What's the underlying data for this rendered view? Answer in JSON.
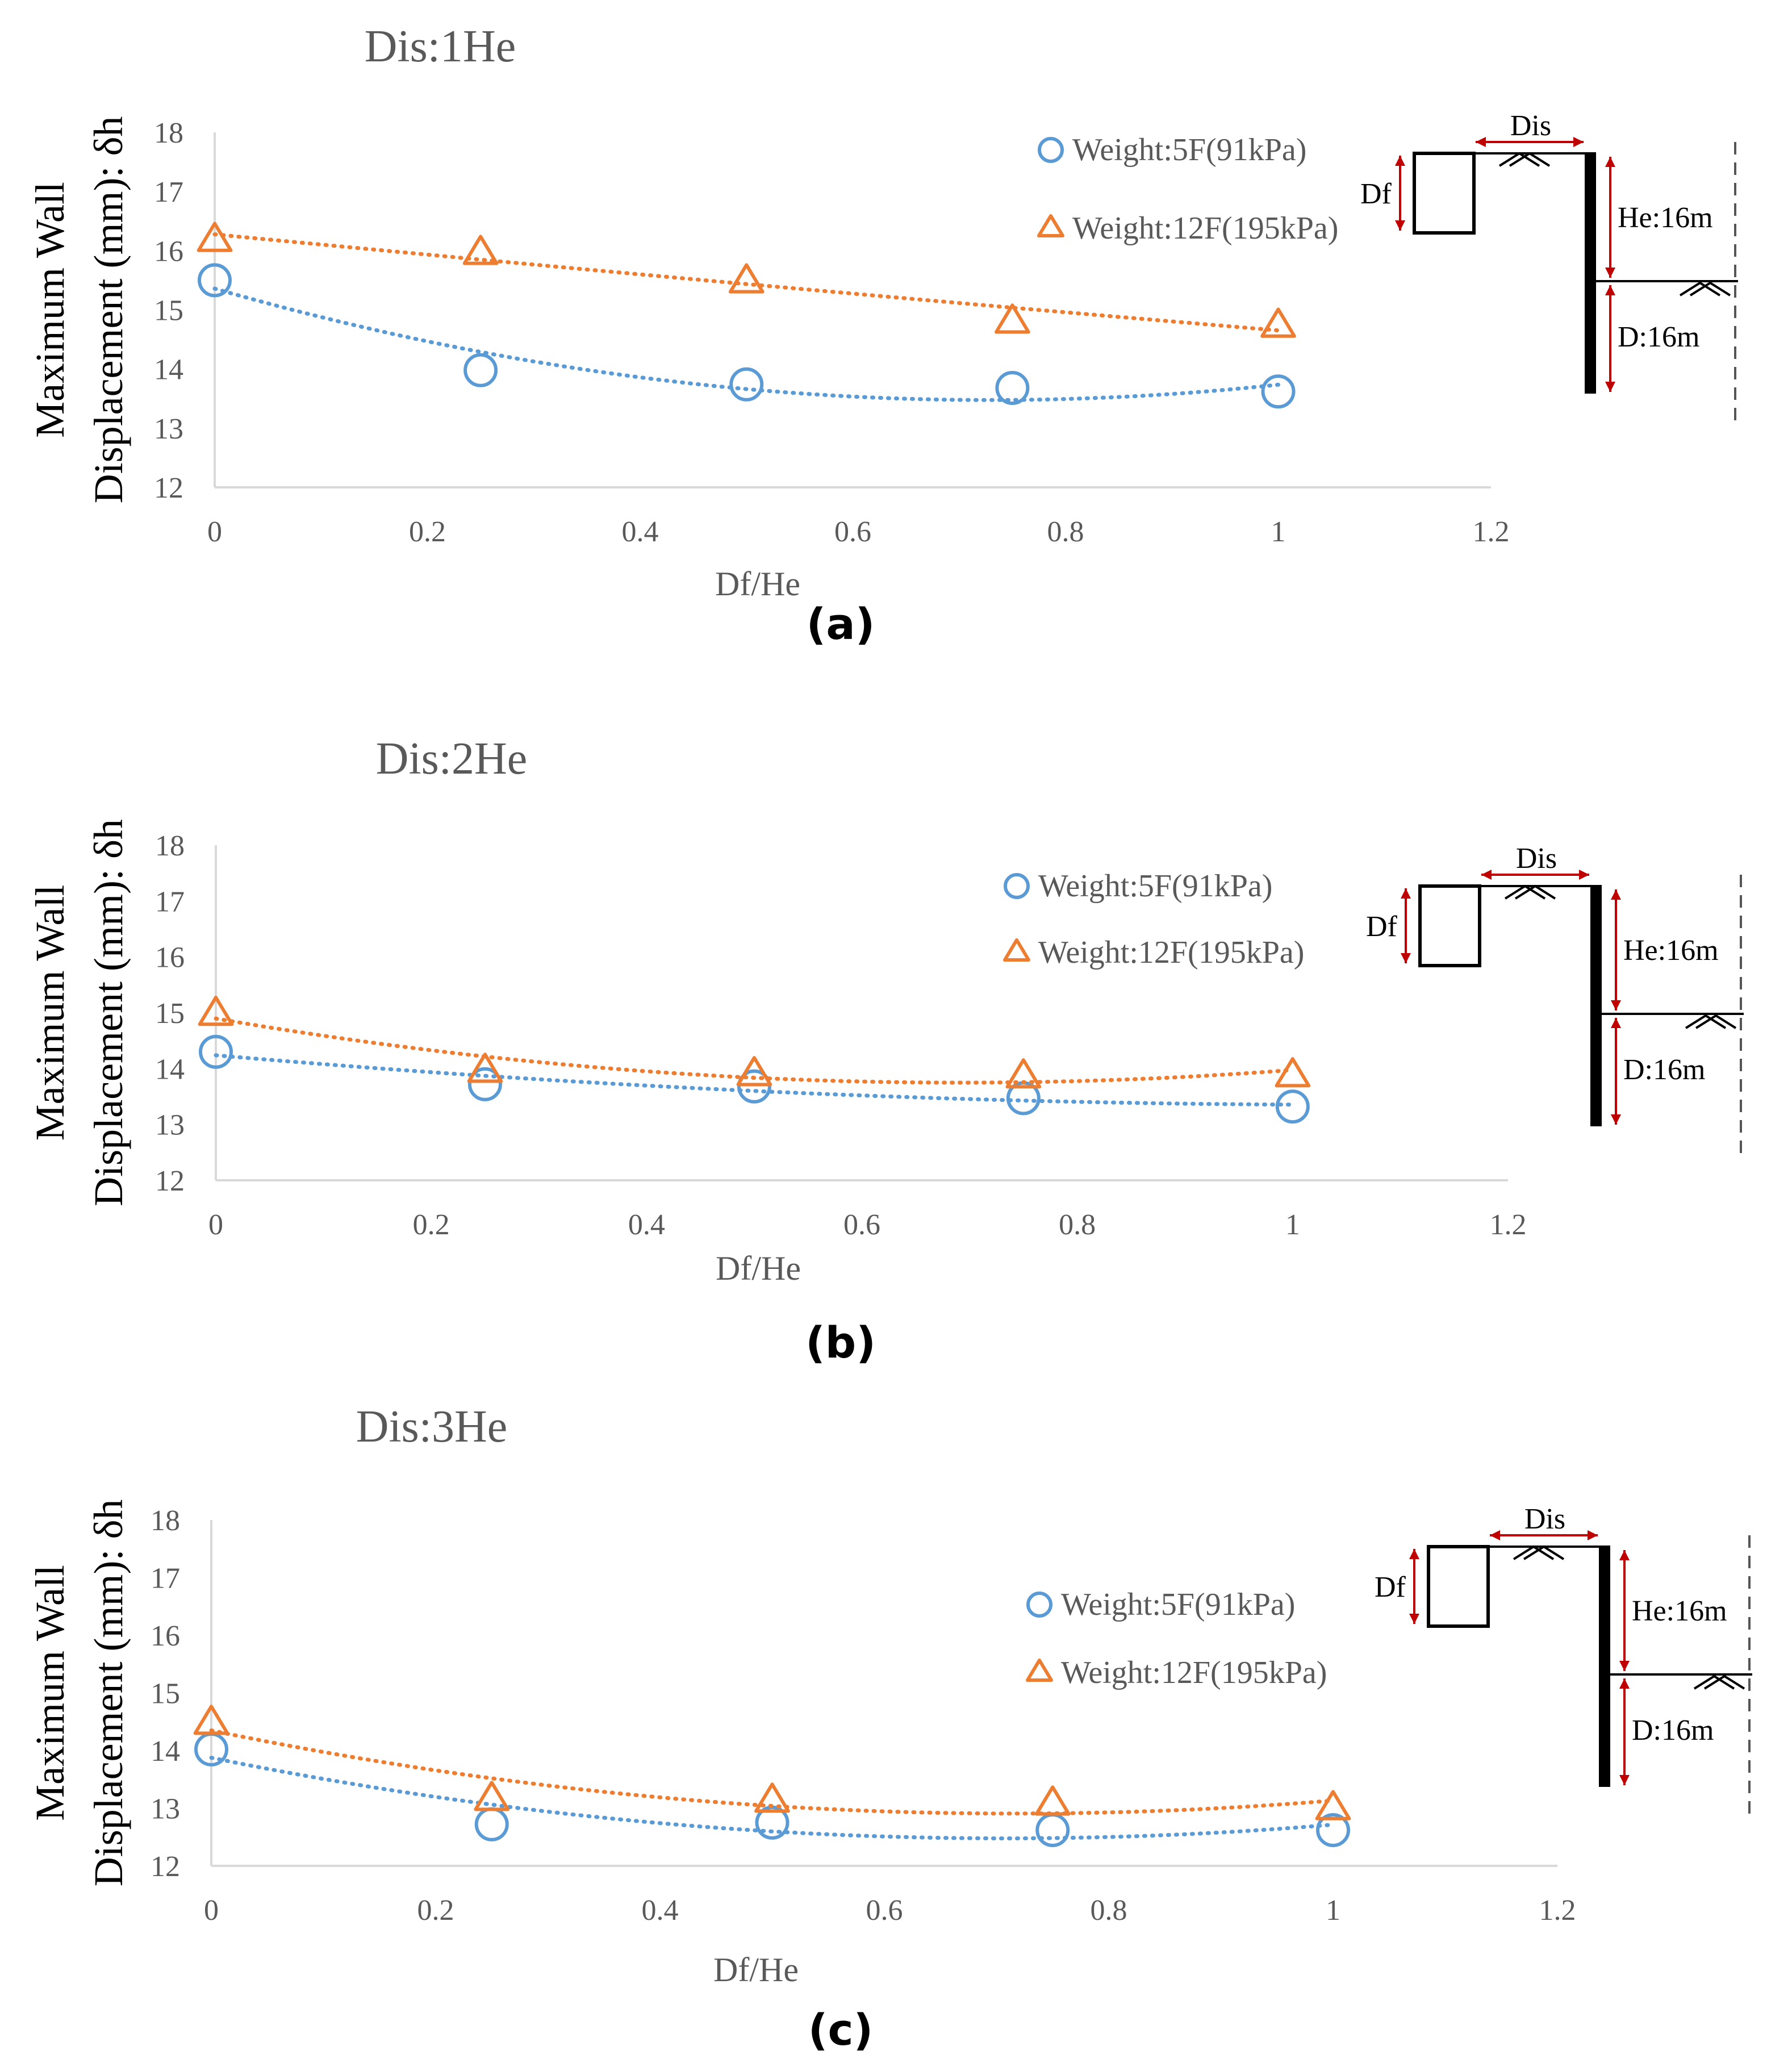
{
  "colors": {
    "series_5f": "#5b9bd5",
    "series_12f": "#ed7d31",
    "axis": "#d9d9d9",
    "text": "#595959",
    "diagram": "#000000",
    "arrow": "#c00000"
  },
  "chart_data": [
    {
      "type": "scatter",
      "panel_label": "(a)",
      "title": "Dis:1He",
      "xlabel": "Df/He",
      "ylabel_line1": "Maximum Wall",
      "ylabel_line2": "Displacement (mm): δh",
      "xlim": [
        0,
        1.2
      ],
      "ylim": [
        12,
        18
      ],
      "x_ticks": [
        "0",
        "0.2",
        "0.4",
        "0.6",
        "0.8",
        "1",
        "1.2"
      ],
      "y_ticks": [
        "12",
        "13",
        "14",
        "15",
        "16",
        "17",
        "18"
      ],
      "legend": [
        "Weight:5F(91kPa)",
        "Weight:12F(195kPa)"
      ],
      "legend_position": "top-right",
      "trendline": "polynomial (dotted)",
      "series": [
        {
          "name": "Weight:5F(91kPa)",
          "marker": "circle",
          "x": [
            0,
            0.25,
            0.5,
            0.75,
            1
          ],
          "y": [
            15.5,
            13.98,
            13.74,
            13.68,
            13.62
          ]
        },
        {
          "name": "Weight:12F(195kPa)",
          "marker": "triangle",
          "x": [
            0,
            0.25,
            0.5,
            0.75,
            1
          ],
          "y": [
            16.2,
            15.98,
            15.5,
            14.82,
            14.75
          ]
        }
      ],
      "diagram": {
        "dis": "Dis",
        "df": "Df",
        "he": "He:16m",
        "d": "D:16m"
      }
    },
    {
      "type": "scatter",
      "panel_label": "(b)",
      "title": "Dis:2He",
      "xlabel": "Df/He",
      "ylabel_line1": "Maximum Wall",
      "ylabel_line2": "Displacement (mm): δh",
      "xlim": [
        0,
        1.2
      ],
      "ylim": [
        12,
        18
      ],
      "x_ticks": [
        "0",
        "0.2",
        "0.4",
        "0.6",
        "0.8",
        "1",
        "1.2"
      ],
      "y_ticks": [
        "12",
        "13",
        "14",
        "15",
        "16",
        "17",
        "18"
      ],
      "legend": [
        "Weight:5F(91kPa)",
        "Weight:12F(195kPa)"
      ],
      "legend_position": "top-right",
      "trendline": "polynomial (dotted)",
      "series": [
        {
          "name": "Weight:5F(91kPa)",
          "marker": "circle",
          "x": [
            0,
            0.25,
            0.5,
            0.75,
            1
          ],
          "y": [
            14.3,
            13.72,
            13.68,
            13.47,
            13.32
          ]
        },
        {
          "name": "Weight:12F(195kPa)",
          "marker": "triangle",
          "x": [
            0,
            0.25,
            0.5,
            0.75,
            1
          ],
          "y": [
            15.0,
            13.98,
            13.92,
            13.88,
            13.9
          ]
        }
      ],
      "diagram": {
        "dis": "Dis",
        "df": "Df",
        "he": "He:16m",
        "d": "D:16m"
      }
    },
    {
      "type": "scatter",
      "panel_label": "(c)",
      "title": "Dis:3He",
      "xlabel": "Df/He",
      "ylabel_line1": "Maximum Wall",
      "ylabel_line2": "Displacement (mm): δh",
      "xlim": [
        0,
        1.2
      ],
      "ylim": [
        12,
        18
      ],
      "x_ticks": [
        "0",
        "0.2",
        "0.4",
        "0.6",
        "0.8",
        "1",
        "1.2"
      ],
      "y_ticks": [
        "12",
        "13",
        "14",
        "15",
        "16",
        "17",
        "18"
      ],
      "legend": [
        "Weight:5F(91kPa)",
        "Weight:12F(195kPa)"
      ],
      "legend_position": "top-right",
      "trendline": "polynomial (dotted)",
      "series": [
        {
          "name": "Weight:5F(91kPa)",
          "marker": "circle",
          "x": [
            0,
            0.25,
            0.5,
            0.75,
            1
          ],
          "y": [
            14.02,
            12.72,
            12.75,
            12.62,
            12.62
          ]
        },
        {
          "name": "Weight:12F(195kPa)",
          "marker": "triangle",
          "x": [
            0,
            0.25,
            0.5,
            0.75,
            1
          ],
          "y": [
            14.5,
            13.18,
            13.15,
            13.1,
            13.02
          ]
        }
      ],
      "diagram": {
        "dis": "Dis",
        "df": "Df",
        "he": "He:16m",
        "d": "D:16m"
      }
    }
  ]
}
